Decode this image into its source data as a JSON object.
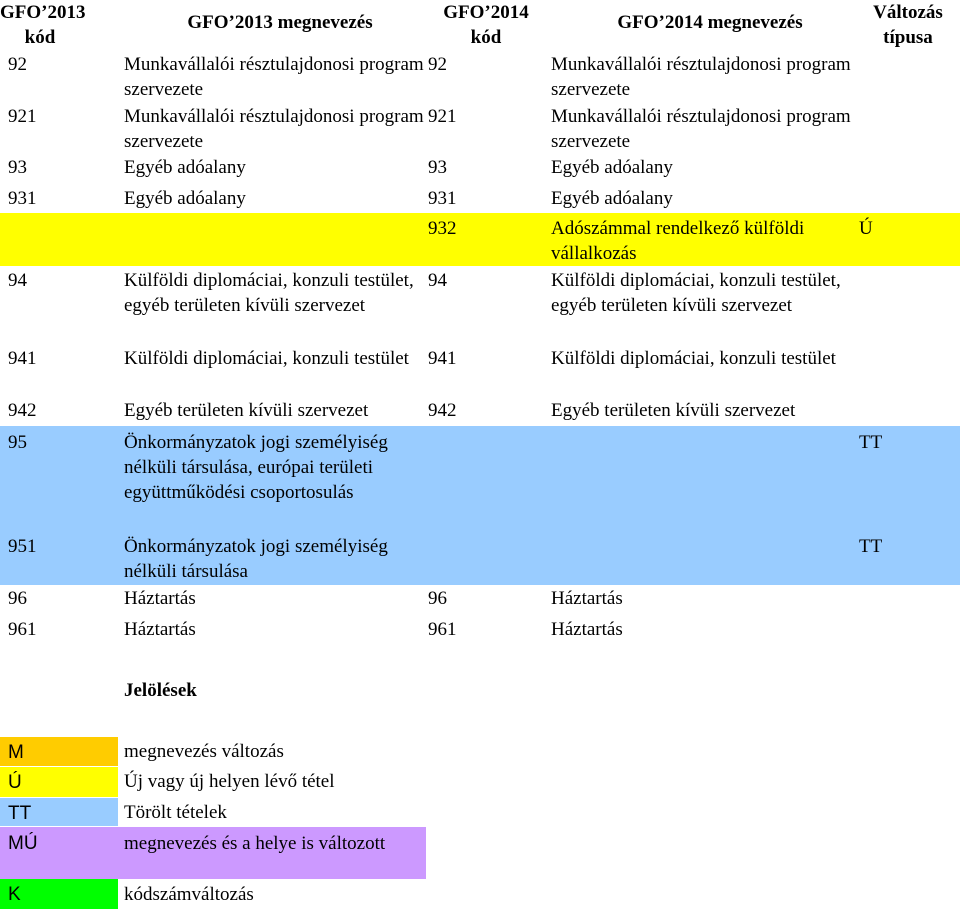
{
  "headers": {
    "col1": "GFO’2013\nkód",
    "col2": "GFO’2013 megnevezés",
    "col3": "GFO’2014\nkód",
    "col4": "GFO’2014 megnevezés",
    "col5": "Változás\ntípusa"
  },
  "rows": [
    {
      "code13": "92",
      "name13": "Munkavállalói résztulajdonosi program szervezete",
      "code14": "92",
      "name14": "Munkavállalói résztulajdonosi program szervezete",
      "change": ""
    },
    {
      "code13": "921",
      "name13": "Munkavállalói résztulajdonosi program szervezete",
      "code14": "921",
      "name14": "Munkavállalói résztulajdonosi program szervezete",
      "change": ""
    },
    {
      "code13": "93",
      "name13": "Egyéb adóalany",
      "code14": "93",
      "name14": "Egyéb adóalany",
      "change": ""
    },
    {
      "code13": "931",
      "name13": "Egyéb adóalany",
      "code14": "931",
      "name14": "Egyéb adóalany",
      "change": ""
    },
    {
      "code13": "",
      "name13": "",
      "code14": "932",
      "name14": "Adószámmal rendelkező külföldi vállalkozás",
      "change": "Ú",
      "color": "#ffff00"
    },
    {
      "code13": "94",
      "name13": "Külföldi diplomáciai, konzuli testület, egyéb területen kívüli szervezet",
      "code14": "94",
      "name14": "Külföldi diplomáciai, konzuli testület, egyéb területen kívüli szervezet",
      "change": ""
    },
    {
      "code13": "941",
      "name13": "Külföldi diplomáciai, konzuli testület",
      "code14": "941",
      "name14": "Külföldi diplomáciai, konzuli testület",
      "change": ""
    },
    {
      "code13": "942",
      "name13": "Egyéb területen kívüli szervezet",
      "code14": "942",
      "name14": "Egyéb területen kívüli szervezet",
      "change": ""
    },
    {
      "code13": "95",
      "name13": "Önkormányzatok jogi személyiség nélküli társulása, európai területi együttműködési csoportosulás",
      "code14": "",
      "name14": "",
      "change": "TT",
      "color": "#99ccff"
    },
    {
      "code13": "951",
      "name13": "Önkormányzatok jogi személyiség nélküli társulása",
      "code14": "",
      "name14": "",
      "change": "TT",
      "color": "#99ccff"
    },
    {
      "code13": "96",
      "name13": "Háztartás",
      "code14": "96",
      "name14": "Háztartás",
      "change": ""
    },
    {
      "code13": "961",
      "name13": "Háztartás",
      "code14": "961",
      "name14": "Háztartás",
      "change": ""
    }
  ],
  "legend": {
    "title": "Jelölések",
    "items": [
      {
        "code": "M",
        "label": "megnevezés változás",
        "color": "#ffcc00"
      },
      {
        "code": "Ú",
        "label": "Új vagy új helyen lévő tétel",
        "color": "#ffff00"
      },
      {
        "code": "TT",
        "label": "Törölt tételek",
        "color": "#99ccff"
      },
      {
        "code": "MÚ",
        "label": "megnevezés és a helye is változott",
        "color": "#cc99ff"
      },
      {
        "code": "K",
        "label": "kódszámváltozás",
        "color": "#00ff00"
      }
    ]
  }
}
